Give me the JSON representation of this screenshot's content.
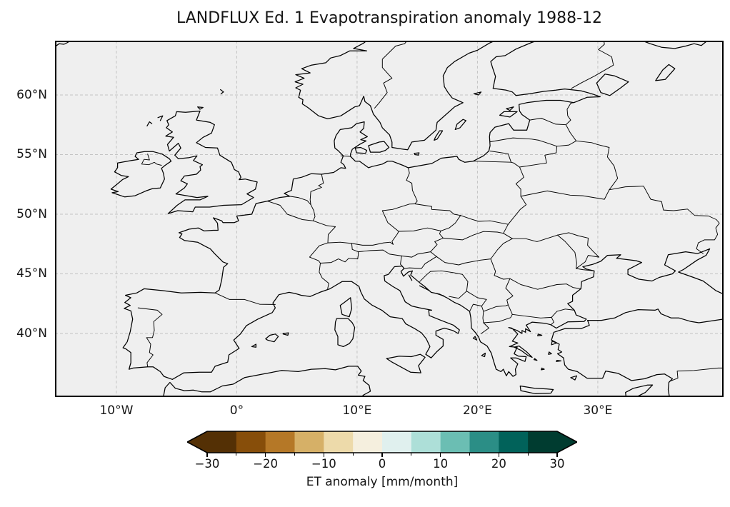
{
  "figure": {
    "title": "LANDFLUX Ed. 1 Evapotranspiration anomaly 1988-12",
    "background_color": "#ffffff"
  },
  "map": {
    "background_color": "#efefef",
    "coastline_color": "#000000",
    "country_border_color": "#000000",
    "gridline_color": "#c3c3c3",
    "x_ticks": [
      {
        "label": "10°W",
        "value": -10
      },
      {
        "label": "0°",
        "value": 0
      },
      {
        "label": "10°E",
        "value": 10
      },
      {
        "label": "20°E",
        "value": 20
      },
      {
        "label": "30°E",
        "value": 30
      }
    ],
    "y_ticks": [
      {
        "label": "60°N",
        "value": 60
      },
      {
        "label": "55°N",
        "value": 55
      },
      {
        "label": "50°N",
        "value": 50
      },
      {
        "label": "45°N",
        "value": 45
      },
      {
        "label": "40°N",
        "value": 40
      }
    ]
  },
  "colorbar": {
    "label": "ET anomaly [mm/month]",
    "orientation": "horizontal",
    "extend": "both",
    "levels": [
      -30,
      -25,
      -20,
      -15,
      -10,
      -5,
      0,
      5,
      10,
      15,
      20,
      25,
      30
    ],
    "major_ticks": [
      {
        "label": "−30",
        "value": -30
      },
      {
        "label": "−20",
        "value": -20
      },
      {
        "label": "−10",
        "value": -10
      },
      {
        "label": "0",
        "value": 0
      },
      {
        "label": "10",
        "value": 10
      },
      {
        "label": "20",
        "value": 20
      },
      {
        "label": "30",
        "value": 30
      }
    ],
    "minor_tick_values": [
      -25,
      -15,
      -5,
      5,
      15,
      25
    ],
    "segment_colors": [
      "#543005",
      "#874e0a",
      "#b57827",
      "#d6b067",
      "#eddaaa",
      "#f5efde",
      "#e0f0ee",
      "#addfd8",
      "#6bbeb3",
      "#2b8e86",
      "#01625a",
      "#003c30"
    ],
    "under_color": "#543005",
    "over_color": "#003c30",
    "outline_color": "#000000"
  },
  "chart_data": {
    "type": "heatmap",
    "title": "LANDFLUX Ed. 1 Evapotranspiration anomaly 1988-12",
    "xlabel": "",
    "ylabel": "",
    "x_tick_labels": [
      "10°W",
      "0°",
      "10°E",
      "20°E",
      "30°E"
    ],
    "y_tick_labels": [
      "60°N",
      "55°N",
      "50°N",
      "45°N",
      "40°N"
    ],
    "xlim_lon": [
      -15.1,
      40.45
    ],
    "ylim_lat": [
      34.7,
      64.55
    ],
    "grid": true,
    "values": [],
    "colorbar_label": "ET anomaly [mm/month]",
    "colorbar_ticks": [
      -30,
      -20,
      -10,
      0,
      10,
      20,
      30
    ],
    "colorbar_levels": [
      -30,
      -25,
      -20,
      -15,
      -10,
      -5,
      0,
      5,
      10,
      15,
      20,
      25,
      30
    ],
    "colormap_colors": [
      "#543005",
      "#874e0a",
      "#b57827",
      "#d6b067",
      "#eddaaa",
      "#f5efde",
      "#e0f0ee",
      "#addfd8",
      "#6bbeb3",
      "#2b8e86",
      "#01625a",
      "#003c30"
    ],
    "colormap_extend": "both"
  }
}
